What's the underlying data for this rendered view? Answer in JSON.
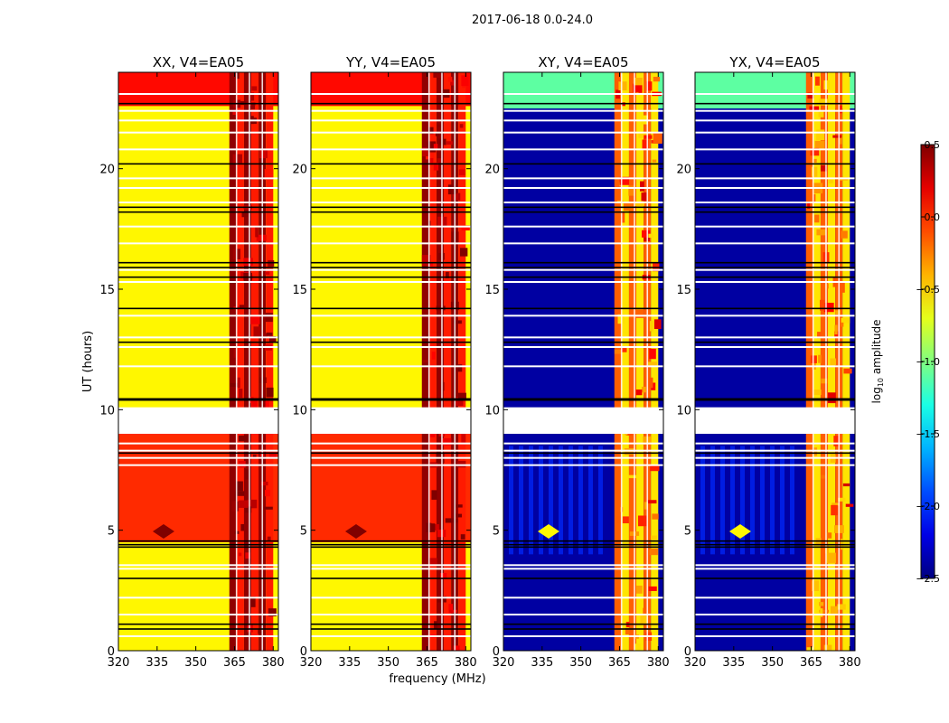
{
  "figure": {
    "suptitle": "2017-06-18 0.0-24.0",
    "ylabel": "UT (hours)",
    "xlabel": "frequency (MHz)"
  },
  "chart_data": {
    "type": "heatmap",
    "title": "2017-06-18 0.0-24.0",
    "xlabel": "frequency (MHz)",
    "ylabel": "UT (hours)",
    "xlim": [
      320,
      382
    ],
    "ylim": [
      0,
      24
    ],
    "x_ticks": [
      320,
      335,
      350,
      365,
      380
    ],
    "y_ticks": [
      0,
      5,
      10,
      15,
      20
    ],
    "panels": [
      {
        "title": "XX, V4=EA05",
        "polarization": "XX",
        "baseline": "V4=EA05",
        "background_level": -0.6,
        "band_level": 0.3
      },
      {
        "title": "YY, V4=EA05",
        "polarization": "YY",
        "baseline": "V4=EA05",
        "background_level": -0.6,
        "band_level": 0.3
      },
      {
        "title": "XY, V4=EA05",
        "polarization": "XY",
        "baseline": "V4=EA05",
        "background_level": -2.4,
        "band_level": -0.3
      },
      {
        "title": "YX, V4=EA05",
        "polarization": "YX",
        "baseline": "V4=EA05",
        "background_level": -2.4,
        "band_level": -0.3
      }
    ],
    "rfi_band_mhz": [
      363,
      380
    ],
    "flagged_ut_ranges": [
      [
        9.0,
        10.1
      ]
    ],
    "colorbar": {
      "label": "log10 amplitude",
      "label_prefix": "log",
      "label_sub": "10",
      "label_suffix": " amplitude",
      "vmin": -2.5,
      "vmax": 0.5,
      "ticks": [
        0.5,
        0.0,
        -0.5,
        -1.0,
        -1.5,
        -2.0,
        -2.5
      ],
      "tick_labels": [
        "0.5",
        "0.0",
        "−0.5",
        "−1.0",
        "−1.5",
        "−2.0",
        "−2.5"
      ],
      "colormap": "jet"
    }
  }
}
